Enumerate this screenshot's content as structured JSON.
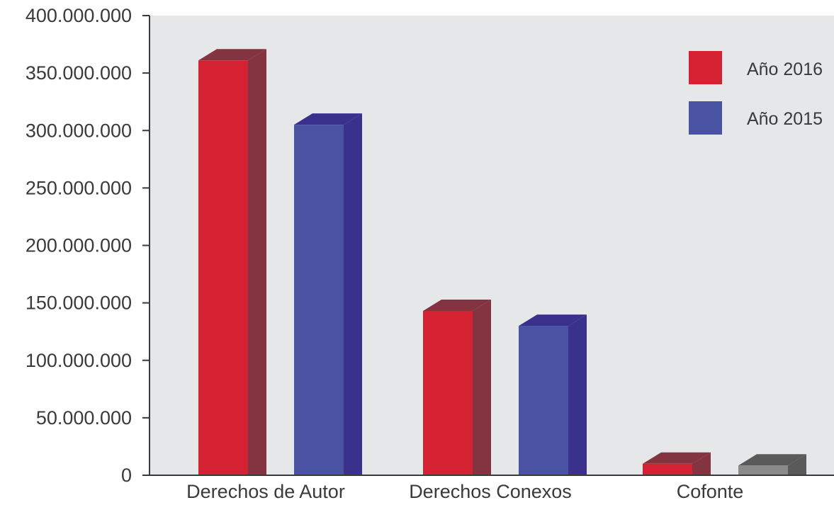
{
  "chart_data": {
    "type": "bar",
    "title": "",
    "xlabel": "",
    "ylabel": "",
    "ylim": [
      0,
      400000000
    ],
    "yticks": [
      0,
      50000000,
      100000000,
      150000000,
      200000000,
      250000000,
      300000000,
      350000000,
      400000000
    ],
    "ytick_labels": [
      "0",
      "50.000.000",
      "100.000.000",
      "150.000.000",
      "200.000.000",
      "250.000.000",
      "300.000.000",
      "350.000.000",
      "400.000.000"
    ],
    "categories": [
      "Derechos de Autor",
      "Derechos Conexos",
      "Cofonte"
    ],
    "series": [
      {
        "name": "Año 2016",
        "values": [
          361000000,
          143000000,
          10000000
        ],
        "colors": {
          "front": "#d42232",
          "side": "#833440"
        },
        "point_colors": [
          null,
          null,
          null
        ]
      },
      {
        "name": "Año 2015",
        "values": [
          305000000,
          130000000,
          8500000
        ],
        "colors": {
          "front": "#4a53a3",
          "side": "#39318c"
        },
        "point_colors": [
          null,
          null,
          {
            "front": "#8a8a8a",
            "side": "#5a5a5a"
          }
        ]
      }
    ],
    "legend": {
      "position": "top-right"
    },
    "grid": false,
    "style": "3d-bar",
    "plot_background": "#e6e7e8",
    "axis_color": "#3a3a3a"
  }
}
